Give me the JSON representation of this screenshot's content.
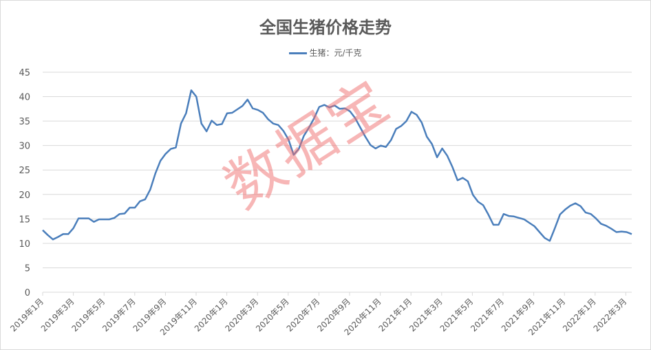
{
  "chart_data": {
    "type": "line",
    "title": "全国生猪价格走势",
    "legend_position": "top",
    "grid": true,
    "ylim": [
      0,
      45
    ],
    "y_ticks": [
      "0",
      "5",
      "10",
      "15",
      "20",
      "25",
      "30",
      "35",
      "40",
      "45"
    ],
    "x_tick_labels": [
      "2019年1月",
      "2019年3月",
      "2019年5月",
      "2019年7月",
      "2019年9月",
      "2019年11月",
      "2020年1月",
      "2020年3月",
      "2020年5月",
      "2020年7月",
      "2020年9月",
      "2020年11月",
      "2021年1月",
      "2021年3月",
      "2021年5月",
      "2021年7月",
      "2021年9月",
      "2021年11月",
      "2022年1月",
      "2022年3月"
    ],
    "series": [
      {
        "name": "生猪：元/千克",
        "color": "#4a7ebb",
        "values": [
          12.7,
          11.7,
          10.8,
          11.3,
          11.9,
          11.9,
          13.1,
          15.1,
          15.1,
          15.1,
          14.4,
          14.9,
          14.9,
          14.9,
          15.2,
          16.0,
          16.1,
          17.3,
          17.3,
          18.6,
          19.0,
          21.0,
          24.3,
          26.9,
          28.3,
          29.3,
          29.6,
          34.5,
          36.6,
          41.3,
          40.0,
          34.5,
          32.9,
          35.1,
          34.2,
          34.4,
          36.6,
          36.7,
          37.4,
          38.1,
          39.4,
          37.6,
          37.3,
          36.7,
          35.4,
          34.5,
          34.2,
          33.0,
          31.2,
          28.1,
          29.3,
          32.0,
          33.7,
          35.6,
          37.9,
          38.3,
          37.8,
          38.2,
          37.5,
          37.6,
          37.0,
          35.6,
          33.7,
          31.8,
          30.1,
          29.4,
          30.0,
          29.7,
          31.1,
          33.4,
          34.0,
          35.0,
          36.9,
          36.3,
          34.7,
          31.8,
          30.3,
          27.6,
          29.4,
          27.9,
          25.6,
          22.9,
          23.4,
          22.7,
          19.9,
          18.5,
          17.8,
          15.9,
          13.8,
          13.8,
          16.0,
          15.6,
          15.5,
          15.2,
          14.9,
          14.2,
          13.5,
          12.3,
          11.1,
          10.5,
          13.1,
          15.9,
          16.9,
          17.7,
          18.2,
          17.6,
          16.3,
          16.0,
          15.1,
          14.0,
          13.6,
          13.0,
          12.3,
          12.4,
          12.3,
          11.9
        ]
      }
    ]
  },
  "watermark": "数据宝"
}
